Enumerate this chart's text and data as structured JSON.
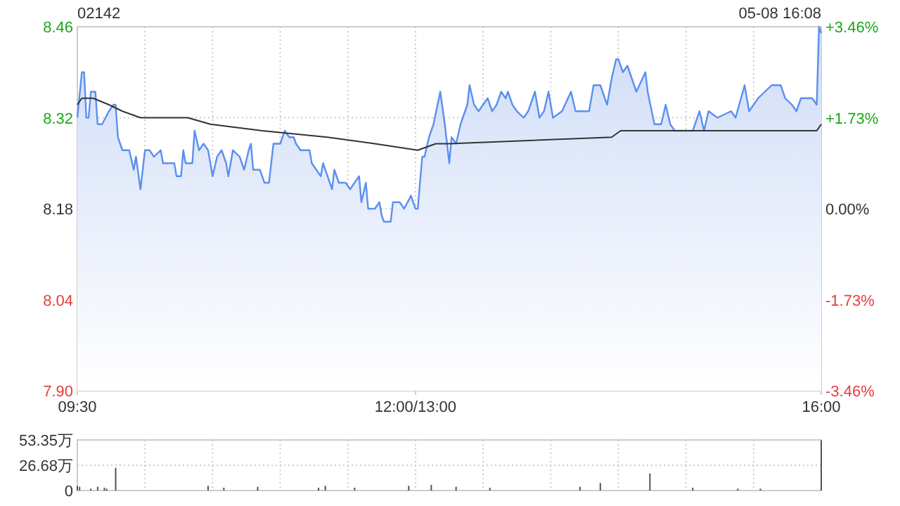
{
  "chart_data": [
    {
      "type": "area",
      "title": "02142",
      "annotations": [
        "05-08 16:08"
      ],
      "categories": [
        "09:30",
        null,
        null,
        null,
        null,
        null,
        null,
        null,
        null,
        null,
        null,
        null,
        null,
        null,
        null,
        null,
        null,
        null,
        null,
        null,
        null,
        null,
        null,
        null,
        null,
        null,
        null,
        null,
        null,
        null,
        null,
        null,
        null,
        null,
        null,
        null,
        null,
        null,
        null,
        null,
        null,
        null,
        null,
        null,
        null,
        null,
        null,
        null,
        null,
        null,
        null,
        null,
        null,
        null,
        null,
        null,
        null,
        null,
        null,
        null,
        null,
        null,
        null,
        null,
        null,
        null,
        null,
        null,
        null,
        null,
        null,
        null,
        null,
        null,
        null,
        null,
        null,
        null,
        null,
        null,
        null,
        null,
        null,
        null,
        null,
        null,
        null,
        null,
        null,
        null,
        null,
        null,
        null,
        null,
        null,
        null,
        null,
        null,
        null,
        null,
        null,
        null,
        null,
        null,
        null,
        null,
        null,
        null,
        null,
        null,
        null,
        null,
        null,
        null,
        null,
        null,
        null,
        null,
        null,
        null,
        null,
        null,
        null,
        null,
        null,
        null,
        null,
        null,
        null,
        null,
        null,
        null,
        null,
        null,
        null,
        null,
        null,
        null,
        null,
        null,
        null,
        null,
        null,
        null,
        null,
        null,
        null,
        null,
        null,
        null,
        "12:00/13:00",
        null,
        null,
        null,
        null,
        null,
        null,
        null,
        null,
        null,
        null,
        null,
        null,
        null,
        null,
        null,
        null,
        null,
        null,
        null,
        null,
        null,
        null,
        null,
        null,
        null,
        null,
        null,
        null,
        null,
        null,
        null,
        null,
        null,
        null,
        null,
        null,
        null,
        null,
        null,
        null,
        null,
        null,
        null,
        null,
        null,
        null,
        null,
        null,
        null,
        null,
        null,
        null,
        null,
        null,
        null,
        null,
        null,
        null,
        null,
        null,
        null,
        null,
        null,
        null,
        null,
        null,
        null,
        null,
        null,
        null,
        null,
        null,
        null,
        null,
        null,
        null,
        null,
        null,
        null,
        null,
        null,
        null,
        null,
        null,
        null,
        null,
        null,
        null,
        null,
        null,
        null,
        null,
        null,
        null,
        null,
        null,
        null,
        null,
        null,
        null,
        null,
        null,
        null,
        null,
        null,
        null,
        null,
        null,
        null,
        null,
        null,
        null,
        null,
        null,
        null,
        null,
        null,
        null,
        null,
        null,
        null,
        null,
        null,
        null,
        null,
        null,
        null,
        null,
        null,
        null,
        null,
        null,
        null,
        null,
        null,
        null,
        null,
        null,
        null,
        null,
        null,
        null,
        null,
        null,
        null,
        null,
        null,
        null,
        null,
        null,
        null,
        null,
        null,
        null,
        null,
        null,
        null,
        null,
        null,
        null,
        null,
        null,
        null,
        null,
        null,
        null,
        null,
        null,
        null,
        null,
        null,
        null,
        null,
        null,
        null,
        null,
        null,
        null,
        null,
        "16:00"
      ],
      "ylim": [
        7.9,
        8.46
      ],
      "yticks": [
        {
          "value": 7.9,
          "label": "7.90"
        },
        8.04,
        8.18,
        8.32,
        8.46
      ],
      "y2lim": [
        -3.46,
        3.46
      ],
      "y2ticks": [
        {
          "value": -3.46,
          "label": "-3.46%"
        },
        {
          "value": -1.73,
          "label": "-1.73%"
        },
        {
          "value": 0,
          "label": "0.00%"
        },
        {
          "value": 1.73,
          "label": "+1.73%"
        },
        {
          "value": 3.46,
          "label": "+3.46%"
        }
      ],
      "grid": true,
      "series": [
        {
          "color": "#5b8ff0",
          "values": [
            8.32,
            null,
            8.39,
            8.39,
            8.32,
            8.32,
            8.36,
            null,
            8.36,
            8.31,
            null,
            8.31,
            null,
            null,
            8.33,
            null,
            8.34,
            8.34,
            8.29,
            null,
            8.27,
            null,
            null,
            8.27,
            null,
            8.24,
            8.26,
            null,
            8.21,
            null,
            8.27,
            null,
            8.27,
            null,
            8.26,
            null,
            null,
            8.27,
            8.25,
            null,
            null,
            null,
            null,
            8.25,
            8.23,
            null,
            8.23,
            8.27,
            8.25,
            null,
            null,
            8.25,
            8.3,
            null,
            8.27,
            null,
            8.28,
            null,
            8.27,
            null,
            8.23,
            null,
            8.26,
            null,
            8.27,
            null,
            8.25,
            8.23,
            null,
            8.27,
            null,
            null,
            8.26,
            null,
            8.24,
            null,
            8.27,
            8.28,
            8.24,
            null,
            null,
            8.24,
            null,
            8.22,
            null,
            8.22,
            null,
            8.28,
            null,
            null,
            8.28,
            null,
            8.3,
            null,
            8.29,
            null,
            8.29,
            8.28,
            null,
            8.27,
            null,
            null,
            null,
            8.27,
            8.25,
            null,
            8.24,
            null,
            8.23,
            8.25,
            null,
            8.23,
            null,
            8.21,
            8.24,
            null,
            8.22,
            null,
            null,
            8.22,
            null,
            8.21,
            null,
            8.22,
            null,
            8.23,
            8.19,
            null,
            8.22,
            8.18,
            null,
            null,
            8.18,
            null,
            8.19,
            8.17,
            8.16,
            null,
            null,
            8.16,
            8.19,
            null,
            null,
            8.19,
            null,
            8.18,
            null,
            null,
            8.2,
            null,
            8.18,
            8.18,
            null,
            8.26,
            8.26,
            null,
            8.29,
            null,
            8.31,
            null,
            null,
            8.36,
            null,
            8.31,
            null,
            8.25,
            8.29,
            null,
            8.28,
            null,
            8.31,
            null,
            null,
            8.34,
            8.37,
            null,
            8.34,
            null,
            8.33,
            null,
            null,
            null,
            8.35,
            null,
            8.33,
            null,
            8.34,
            null,
            8.36,
            null,
            8.35,
            8.36,
            null,
            8.34,
            null,
            8.33,
            null,
            null,
            8.32,
            null,
            8.33,
            null,
            null,
            8.36,
            null,
            8.32,
            null,
            8.33,
            null,
            8.36,
            null,
            8.32,
            null,
            null,
            null,
            8.33,
            null,
            null,
            null,
            8.36,
            null,
            8.33,
            null,
            null,
            null,
            null,
            null,
            8.33,
            null,
            8.37,
            null,
            null,
            8.37,
            null,
            null,
            8.34,
            null,
            8.38,
            null,
            8.41,
            8.41,
            null,
            8.39,
            null,
            8.4,
            null,
            null,
            null,
            8.36,
            null,
            null,
            null,
            8.39,
            8.36,
            null,
            null,
            8.31,
            null,
            null,
            8.31,
            null,
            8.34,
            null,
            8.31,
            null,
            8.3,
            null,
            null,
            null,
            8.3,
            null,
            null,
            null,
            8.3,
            null,
            null,
            8.33,
            null,
            8.3,
            null,
            8.33,
            null,
            null,
            null,
            8.32,
            null,
            null,
            null,
            null,
            null,
            8.33,
            null,
            8.32,
            null,
            null,
            null,
            8.37,
            null,
            8.33,
            null,
            null,
            null,
            8.35,
            null,
            null,
            null,
            null,
            null,
            8.37,
            null,
            null,
            null,
            8.37,
            null,
            8.35,
            null,
            null,
            8.34,
            null,
            8.33,
            null,
            8.35,
            null,
            null,
            null,
            null,
            8.35,
            null,
            8.34,
            8.46,
            8.45
          ]
        },
        {
          "type": "line",
          "color": "#333333",
          "values": [
            8.34,
            null,
            8.35,
            null,
            null,
            null,
            null,
            8.35,
            null,
            null,
            null,
            null,
            null,
            null,
            8.34,
            null,
            null,
            null,
            null,
            null,
            8.33,
            null,
            null,
            null,
            null,
            null,
            null,
            null,
            8.32,
            null,
            null,
            null,
            null,
            null,
            null,
            null,
            null,
            null,
            null,
            null,
            null,
            null,
            null,
            null,
            null,
            null,
            null,
            null,
            null,
            8.32,
            null,
            null,
            null,
            null,
            null,
            null,
            null,
            null,
            null,
            8.31,
            null,
            null,
            null,
            null,
            null,
            null,
            null,
            null,
            null,
            null,
            null,
            null,
            null,
            null,
            null,
            null,
            null,
            null,
            null,
            null,
            null,
            null,
            8.3,
            null,
            null,
            null,
            null,
            null,
            null,
            null,
            null,
            null,
            null,
            null,
            null,
            null,
            null,
            null,
            null,
            null,
            null,
            null,
            null,
            null,
            null,
            null,
            null,
            null,
            null,
            null,
            null,
            8.29,
            null,
            null,
            null,
            null,
            null,
            null,
            null,
            null,
            null,
            null,
            null,
            null,
            null,
            null,
            null,
            null,
            null,
            null,
            null,
            null,
            8.28,
            null,
            null,
            null,
            null,
            null,
            null,
            null,
            null,
            null,
            null,
            null,
            null,
            null,
            null,
            null,
            null,
            null,
            null,
            8.27,
            null,
            null,
            null,
            null,
            null,
            null,
            null,
            8.28,
            null,
            null,
            null,
            null,
            null,
            8.28,
            null,
            null,
            null,
            null,
            null,
            null,
            null,
            null,
            null,
            null,
            null,
            null,
            null,
            null,
            null,
            null,
            null,
            null,
            null,
            null,
            null,
            null,
            null,
            null,
            null,
            null,
            null,
            null,
            null,
            null,
            null,
            null,
            null,
            null,
            null,
            null,
            null,
            null,
            null,
            null,
            null,
            null,
            null,
            null,
            null,
            null,
            null,
            null,
            null,
            null,
            null,
            null,
            null,
            null,
            null,
            null,
            null,
            null,
            null,
            null,
            null,
            null,
            null,
            null,
            null,
            null,
            null,
            null,
            null,
            null,
            null,
            8.29,
            null,
            null,
            null,
            8.3,
            null,
            null,
            null,
            null,
            null,
            null,
            null,
            null,
            null,
            null,
            null,
            null,
            null,
            null,
            null,
            null,
            null,
            null,
            null,
            null,
            null,
            null,
            null,
            8.3,
            null,
            null,
            null,
            null,
            null,
            null,
            null,
            null,
            null,
            null,
            null,
            null,
            null,
            null,
            null,
            null,
            null,
            null,
            null,
            null,
            null,
            null,
            null,
            null,
            null,
            null,
            null,
            null,
            null,
            null,
            null,
            null,
            null,
            null,
            null,
            null,
            null,
            null,
            null,
            null,
            null,
            null,
            null,
            null,
            null,
            null,
            null,
            null,
            null,
            null,
            null,
            null,
            null,
            null,
            null,
            null,
            null,
            null,
            null,
            null,
            null,
            null,
            8.3,
            null,
            8.31
          ]
        }
      ]
    },
    {
      "type": "bar",
      "tick_labels": "y",
      "grid": true,
      "color": "#555555",
      "categories": [
        null,
        null,
        null,
        null,
        null,
        null,
        null,
        null,
        null,
        null,
        null,
        null,
        null,
        null,
        null,
        null,
        null,
        null,
        null,
        null,
        null,
        null,
        null,
        null,
        null,
        null,
        null,
        null,
        null,
        null,
        null,
        null,
        null,
        null,
        null,
        null,
        null,
        null,
        null,
        null,
        null,
        null,
        null,
        null,
        null,
        null,
        null,
        null,
        null,
        null,
        null,
        null,
        null,
        null,
        null,
        null,
        null,
        null,
        null,
        null,
        null,
        null,
        null,
        null,
        null,
        null,
        null,
        null,
        null,
        null,
        null,
        null,
        null,
        null,
        null,
        null,
        null,
        null,
        null,
        null,
        null,
        null,
        null,
        null,
        null,
        null,
        null,
        null,
        null,
        null,
        null,
        null,
        null,
        null,
        null,
        null,
        null,
        null,
        null,
        null,
        null,
        null,
        null,
        null,
        null,
        null,
        null,
        null,
        null,
        null,
        null,
        null,
        null,
        null,
        null,
        null,
        null,
        null,
        null,
        null,
        null,
        null,
        null,
        null,
        null,
        null,
        null,
        null,
        null,
        null,
        null,
        null,
        null,
        null,
        null,
        null,
        null,
        null,
        null,
        null,
        null,
        null,
        null,
        null,
        null,
        null,
        null,
        null,
        null,
        null,
        null,
        null,
        null,
        null,
        null,
        null,
        null,
        null,
        null,
        null,
        null,
        null,
        null,
        null,
        null,
        null,
        null,
        null,
        null,
        null,
        null,
        null,
        null,
        null,
        null,
        null,
        null,
        null,
        null,
        null,
        null,
        null,
        null,
        null,
        null,
        null,
        null,
        null,
        null,
        null,
        null,
        null,
        null,
        null,
        null,
        null,
        null,
        null,
        null,
        null,
        null,
        null,
        null,
        null,
        null,
        null,
        null,
        null,
        null,
        null,
        null,
        null,
        null,
        null,
        null,
        null,
        null,
        null,
        null,
        null,
        null,
        null,
        null,
        null,
        null,
        null,
        null,
        null,
        null,
        null,
        null,
        null,
        null,
        null,
        null,
        null,
        null,
        null,
        null,
        null,
        null,
        null,
        null,
        null,
        null,
        null,
        null,
        null,
        null,
        null,
        null,
        null,
        null,
        null,
        null,
        null,
        null,
        null,
        null,
        null,
        null,
        null,
        null,
        null,
        null,
        null,
        null,
        null,
        null,
        null,
        null,
        null,
        null,
        null,
        null,
        null,
        null,
        null,
        null,
        null,
        null,
        null,
        null,
        null,
        null,
        null,
        null,
        null,
        null,
        null,
        null,
        null,
        null,
        null,
        null,
        null,
        null,
        null,
        null,
        null,
        null,
        null,
        null,
        null,
        null,
        null,
        null,
        null,
        null,
        null,
        null,
        null,
        null,
        null,
        null,
        null,
        null,
        null,
        null,
        null,
        null,
        null,
        null,
        null,
        null,
        null,
        null,
        null,
        null,
        null,
        null
      ],
      "ylim": [
        0,
        53.35
      ],
      "yticks": [
        0,
        {
          "value": 26.68,
          "label": "26.68万"
        },
        {
          "value": 53.35,
          "label": "53.35万"
        }
      ],
      "values": [
        5,
        4,
        null,
        null,
        null,
        null,
        2,
        null,
        null,
        4,
        null,
        null,
        3,
        2,
        null,
        null,
        null,
        24,
        null,
        null,
        null,
        null,
        null,
        null,
        null,
        null,
        null,
        null,
        null,
        null,
        null,
        null,
        null,
        null,
        null,
        null,
        null,
        null,
        null,
        null,
        null,
        null,
        null,
        null,
        null,
        null,
        null,
        null,
        null,
        null,
        null,
        null,
        null,
        null,
        null,
        null,
        null,
        null,
        5,
        null,
        null,
        null,
        null,
        null,
        null,
        3,
        null,
        null,
        null,
        null,
        null,
        null,
        null,
        null,
        null,
        null,
        null,
        null,
        null,
        null,
        4,
        null,
        null,
        null,
        null,
        null,
        null,
        null,
        null,
        null,
        null,
        null,
        null,
        null,
        null,
        null,
        null,
        null,
        null,
        null,
        null,
        null,
        null,
        null,
        null,
        null,
        null,
        3,
        null,
        null,
        5,
        null,
        null,
        null,
        null,
        null,
        null,
        null,
        null,
        null,
        null,
        null,
        null,
        3,
        null,
        null,
        null,
        null,
        null,
        null,
        null,
        null,
        null,
        null,
        null,
        null,
        null,
        null,
        null,
        null,
        null,
        null,
        null,
        null,
        null,
        null,
        null,
        5,
        null,
        null,
        null,
        null,
        null,
        null,
        null,
        null,
        null,
        6,
        null,
        null,
        null,
        null,
        null,
        null,
        null,
        null,
        null,
        null,
        4,
        null,
        null,
        null,
        null,
        null,
        null,
        null,
        null,
        null,
        null,
        null,
        null,
        null,
        null,
        3,
        null,
        null,
        null,
        null,
        null,
        null,
        null,
        null,
        null,
        null,
        null,
        null,
        null,
        null,
        null,
        null,
        null,
        null,
        null,
        null,
        null,
        null,
        null,
        null,
        null,
        null,
        null,
        null,
        null,
        null,
        null,
        null,
        null,
        null,
        null,
        null,
        null,
        null,
        null,
        4,
        null,
        null,
        null,
        null,
        null,
        null,
        null,
        null,
        8,
        null,
        null,
        null,
        null,
        null,
        null,
        null,
        null,
        null,
        null,
        null,
        null,
        null,
        null,
        null,
        null,
        null,
        null,
        null,
        null,
        null,
        18,
        null,
        null,
        null,
        null,
        null,
        null,
        null,
        null,
        null,
        null,
        null,
        null,
        null,
        null,
        null,
        null,
        null,
        null,
        3,
        null,
        null,
        null,
        null,
        null,
        null,
        null,
        null,
        null,
        null,
        null,
        null,
        null,
        null,
        null,
        null,
        null,
        null,
        null,
        2,
        null,
        null,
        null,
        null,
        null,
        null,
        null,
        null,
        null,
        2,
        null,
        null,
        null,
        null,
        null,
        null,
        null,
        null,
        null,
        null,
        null,
        null,
        null,
        null,
        null,
        null,
        null,
        null,
        null,
        null,
        null,
        null,
        null,
        null,
        null,
        null,
        53
      ]
    }
  ]
}
